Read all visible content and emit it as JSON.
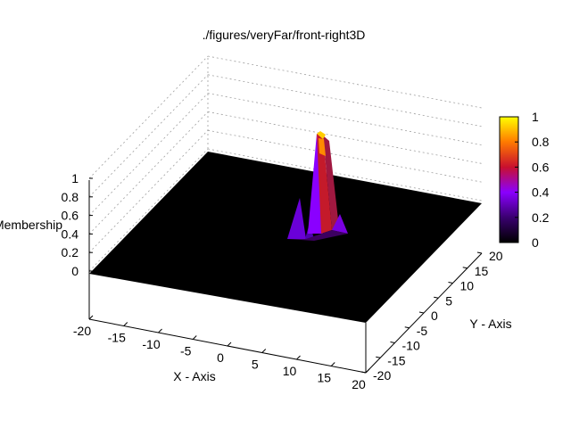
{
  "chart_data": {
    "type": "surface3d",
    "title": "./figures/veryFar/front-right3D",
    "xlabel": "X - Axis",
    "ylabel": "Y - Axis",
    "zlabel": "Membership",
    "xlim": [
      -20,
      20
    ],
    "ylim": [
      -20,
      20
    ],
    "zlim": [
      0,
      1
    ],
    "x_ticks": [
      "-20",
      "-15",
      "-10",
      "-5",
      "0",
      "5",
      "10",
      "15",
      "20"
    ],
    "y_ticks": [
      "-20",
      "-15",
      "-10",
      "-5",
      "0",
      "5",
      "10",
      "15",
      "20"
    ],
    "z_ticks": [
      "0",
      "0.2",
      "0.4",
      "0.6",
      "0.8",
      "1"
    ],
    "colorbar": {
      "ticks": [
        "0",
        "0.2",
        "0.4",
        "0.6",
        "0.8",
        "1"
      ],
      "colors": [
        "#000000",
        "#4b0082",
        "#8a00ff",
        "#c8102e",
        "#ff8c00",
        "#ffff00"
      ]
    },
    "floor_value": 0,
    "peak": {
      "x": 8,
      "y": 6,
      "z": 1.0,
      "sidelobes": [
        {
          "x": 5,
          "y": 5,
          "z": 0.2
        },
        {
          "x": 11,
          "y": 7,
          "z": 0.2
        },
        {
          "x": 7,
          "y": 3,
          "z": 0.25
        }
      ]
    },
    "grid": true
  }
}
